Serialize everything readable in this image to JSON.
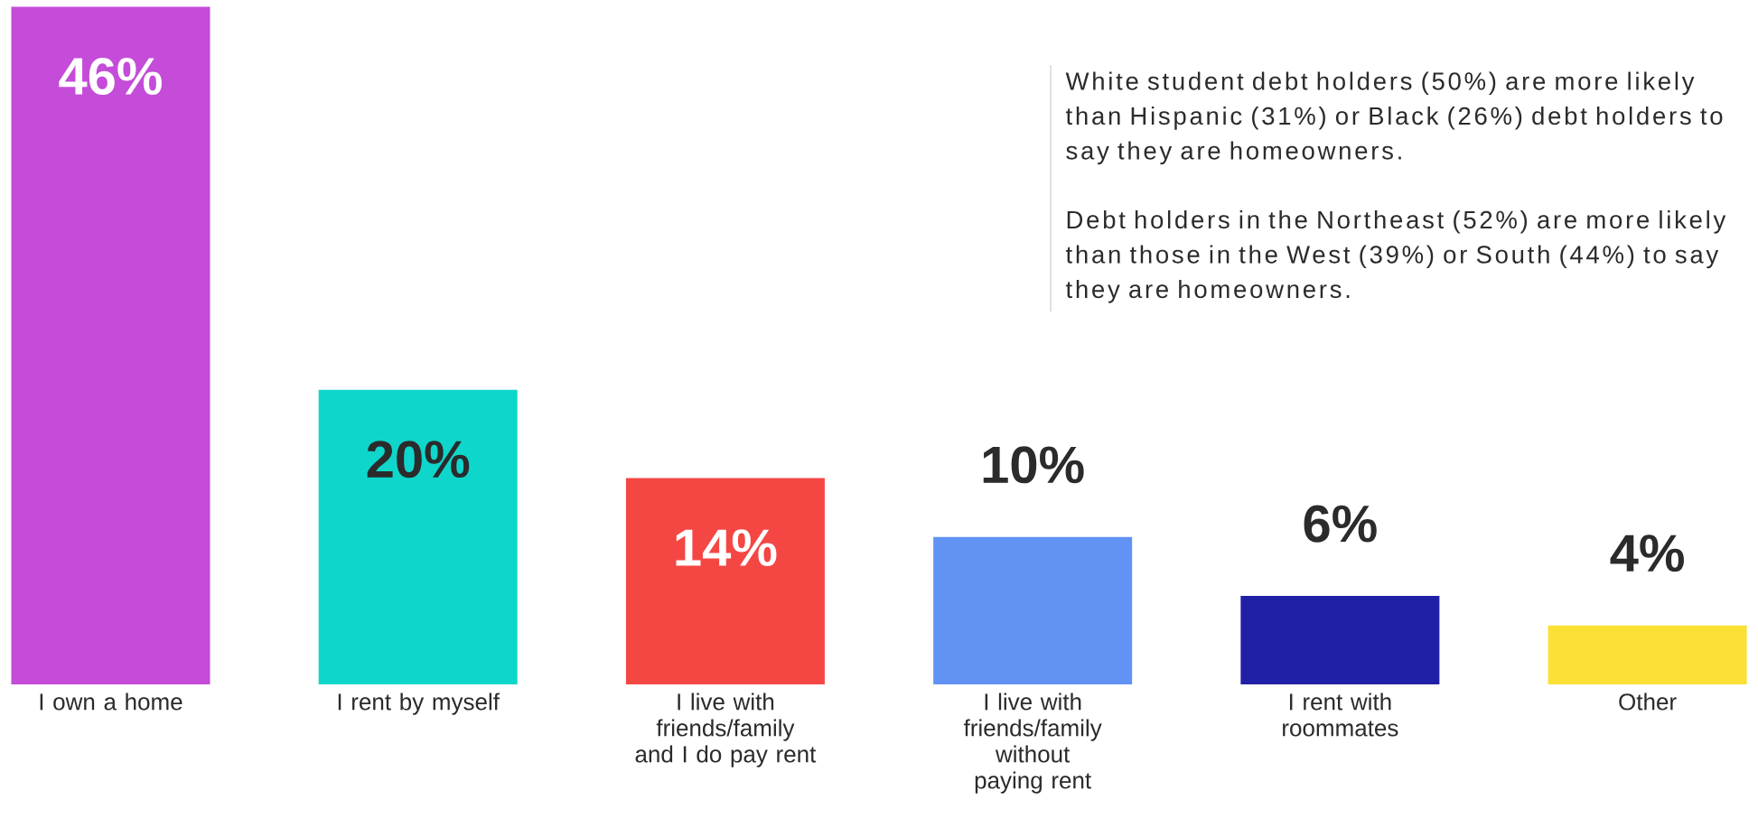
{
  "chart_data": {
    "type": "bar",
    "categories": [
      "I own a home",
      "I rent by myself",
      "I live with friends/family and I do pay rent",
      "I live with friends/family without paying rent",
      "I rent with roommates",
      "Other"
    ],
    "values": [
      46,
      20,
      14,
      10,
      6,
      4
    ],
    "colors": [
      "#c44cd8",
      "#0fd6cb",
      "#f44744",
      "#6192f4",
      "#2020a6",
      "#fbe035"
    ],
    "value_labels": [
      "46%",
      "20%",
      "14%",
      "10%",
      "6%",
      "4%"
    ],
    "annotations": [
      "White student debt holders (50%) are more likely than Hispanic (31%) or Black (26%) debt holders to say they are homeowners.",
      "Debt holders in the Northeast (52%) are more likely than those in the West (39%) or South (44%) to say they are homeowners."
    ]
  }
}
